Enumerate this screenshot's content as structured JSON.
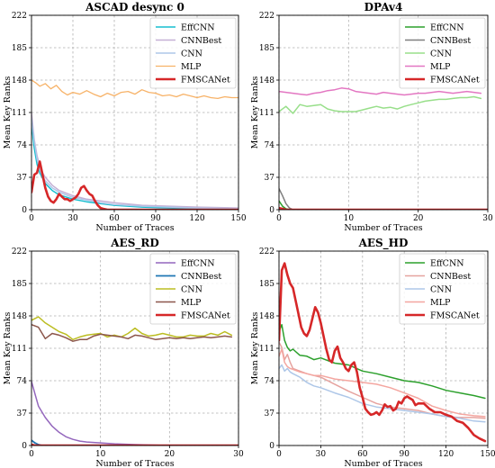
{
  "chart_data": [
    {
      "type": "line",
      "title": "ASCAD desync 0",
      "xlabel": "Number of Traces",
      "ylabel": "Mean Key Ranks",
      "xlim": [
        0,
        150
      ],
      "ylim": [
        0,
        222
      ],
      "xticks": [
        0,
        30,
        60,
        90,
        120,
        150
      ],
      "yticks": [
        0,
        37,
        74,
        111,
        148,
        185,
        222
      ],
      "grid": true,
      "legend": "top-right",
      "series": [
        {
          "name": "EffCNN",
          "color": "#17becf",
          "width": 1.5,
          "x": [
            0,
            2,
            4,
            6,
            8,
            10,
            15,
            20,
            30,
            40,
            50,
            60,
            80,
            100,
            120,
            150
          ],
          "y": [
            98,
            70,
            52,
            42,
            36,
            30,
            22,
            17,
            12,
            9,
            7,
            5,
            3,
            2,
            1,
            0
          ]
        },
        {
          "name": "CNNBest",
          "color": "#c5b0d5",
          "width": 1.5,
          "x": [
            0,
            2,
            4,
            6,
            8,
            10,
            15,
            20,
            30,
            40,
            50,
            60,
            80,
            100,
            120,
            150
          ],
          "y": [
            110,
            80,
            62,
            50,
            42,
            37,
            28,
            22,
            16,
            12,
            10,
            8,
            5,
            4,
            3,
            2
          ]
        },
        {
          "name": "CNN",
          "color": "#aec7e8",
          "width": 1.5,
          "x": [
            0,
            2,
            4,
            6,
            8,
            10,
            15,
            20,
            30,
            40,
            50,
            60,
            80,
            100,
            120,
            150
          ],
          "y": [
            104,
            78,
            58,
            46,
            38,
            33,
            25,
            20,
            14,
            11,
            8,
            6,
            4,
            3,
            2,
            1
          ]
        },
        {
          "name": "MLP",
          "color": "#f7b267",
          "width": 1.3,
          "x": [
            0,
            3,
            6,
            10,
            14,
            18,
            22,
            26,
            30,
            35,
            40,
            45,
            50,
            55,
            60,
            65,
            70,
            75,
            80,
            85,
            90,
            95,
            100,
            105,
            110,
            115,
            120,
            125,
            130,
            135,
            140,
            145,
            150
          ],
          "y": [
            148,
            145,
            141,
            144,
            138,
            142,
            135,
            131,
            134,
            132,
            136,
            132,
            129,
            133,
            130,
            134,
            135,
            132,
            137,
            134,
            133,
            130,
            131,
            129,
            132,
            130,
            128,
            130,
            128,
            127,
            129,
            128,
            128
          ]
        },
        {
          "name": "FMSCANet",
          "color": "#d62728",
          "width": 2.6,
          "x": [
            0,
            2,
            4,
            6,
            8,
            10,
            12,
            14,
            16,
            18,
            20,
            22,
            24,
            26,
            28,
            30,
            32,
            34,
            36,
            38,
            40,
            42,
            44,
            46,
            48,
            50,
            52,
            55,
            60,
            80,
            100,
            150
          ],
          "y": [
            20,
            40,
            42,
            55,
            40,
            25,
            15,
            10,
            8,
            12,
            18,
            15,
            12,
            12,
            10,
            12,
            14,
            18,
            25,
            27,
            22,
            18,
            16,
            10,
            5,
            2,
            1,
            0,
            0,
            0,
            0,
            0
          ]
        }
      ]
    },
    {
      "type": "line",
      "title": "DPAv4",
      "xlabel": "Number of Traces",
      "ylabel": "Mean Key Ranks",
      "xlim": [
        0,
        30
      ],
      "ylim": [
        0,
        222
      ],
      "xticks": [
        0,
        10,
        20,
        30
      ],
      "yticks": [
        0,
        37,
        74,
        111,
        148,
        185,
        222
      ],
      "grid": true,
      "legend": "top-right",
      "series": [
        {
          "name": "EffCNN",
          "color": "#2ca02c",
          "width": 1.5,
          "x": [
            0,
            0.5,
            1,
            1.5,
            2,
            3,
            30
          ],
          "y": [
            10,
            4,
            1,
            0,
            0,
            0,
            0
          ]
        },
        {
          "name": "CNNBest",
          "color": "#7f7f7f",
          "width": 1.5,
          "x": [
            0,
            0.5,
            1,
            1.5,
            2,
            3,
            30
          ],
          "y": [
            24,
            16,
            7,
            2,
            0,
            0,
            0
          ]
        },
        {
          "name": "CNN",
          "color": "#98df8a",
          "width": 1.5,
          "x": [
            0,
            1,
            2,
            3,
            4,
            5,
            6,
            7,
            8,
            9,
            10,
            11,
            12,
            13,
            14,
            15,
            16,
            17,
            18,
            19,
            20,
            21,
            22,
            23,
            24,
            25,
            26,
            27,
            28,
            29
          ],
          "y": [
            112,
            118,
            110,
            120,
            118,
            119,
            120,
            115,
            113,
            112,
            112,
            112,
            114,
            116,
            118,
            116,
            117,
            115,
            118,
            120,
            122,
            124,
            125,
            126,
            126,
            127,
            128,
            128,
            129,
            127
          ]
        },
        {
          "name": "MLP",
          "color": "#e377c2",
          "width": 1.5,
          "x": [
            0,
            1,
            2,
            3,
            4,
            5,
            6,
            7,
            8,
            9,
            10,
            11,
            12,
            13,
            14,
            15,
            16,
            17,
            18,
            19,
            20,
            21,
            22,
            23,
            24,
            25,
            26,
            27,
            28,
            29
          ],
          "y": [
            135,
            134,
            133,
            132,
            131,
            133,
            134,
            136,
            137,
            139,
            138,
            135,
            134,
            133,
            132,
            134,
            133,
            132,
            131,
            132,
            133,
            133,
            134,
            135,
            134,
            133,
            134,
            135,
            134,
            133
          ]
        },
        {
          "name": "FMSCANet",
          "color": "#d62728",
          "width": 2.6,
          "x": [
            0,
            0.5,
            1,
            2,
            30
          ],
          "y": [
            2,
            1,
            0,
            0,
            0
          ]
        }
      ]
    },
    {
      "type": "line",
      "title": "AES_RD",
      "xlabel": "Number of Traces",
      "ylabel": "Mean Key Ranks",
      "xlim": [
        0,
        30
      ],
      "ylim": [
        0,
        222
      ],
      "xticks": [
        0,
        10,
        20,
        30
      ],
      "yticks": [
        0,
        37,
        74,
        111,
        148,
        185,
        222
      ],
      "grid": true,
      "legend": "top-right",
      "series": [
        {
          "name": "EffCNN",
          "color": "#9467bd",
          "width": 1.5,
          "x": [
            0,
            1,
            2,
            3,
            4,
            5,
            6,
            7,
            8,
            10,
            12,
            15,
            20,
            25,
            30
          ],
          "y": [
            73,
            45,
            32,
            22,
            15,
            10,
            7,
            5,
            4,
            3,
            2,
            1,
            0,
            0,
            0
          ]
        },
        {
          "name": "CNNBest",
          "color": "#1f77b4",
          "width": 1.8,
          "x": [
            0,
            0.5,
            1,
            1.5,
            2,
            30
          ],
          "y": [
            6,
            3,
            1,
            0,
            0,
            0
          ]
        },
        {
          "name": "CNN",
          "color": "#bcbd22",
          "width": 1.5,
          "x": [
            0,
            1,
            2,
            3,
            4,
            5,
            6,
            7,
            8,
            9,
            10,
            11,
            12,
            13,
            14,
            15,
            16,
            17,
            18,
            19,
            20,
            21,
            22,
            23,
            24,
            25,
            26,
            27,
            28,
            29
          ],
          "y": [
            143,
            147,
            140,
            135,
            130,
            127,
            121,
            124,
            126,
            127,
            128,
            124,
            126,
            124,
            128,
            134,
            128,
            125,
            126,
            128,
            126,
            124,
            124,
            126,
            125,
            125,
            128,
            126,
            130,
            126
          ]
        },
        {
          "name": "MLP",
          "color": "#8c564b",
          "width": 1.5,
          "x": [
            0,
            1,
            2,
            3,
            4,
            5,
            6,
            7,
            8,
            9,
            10,
            11,
            12,
            13,
            14,
            15,
            16,
            17,
            18,
            19,
            20,
            21,
            22,
            23,
            24,
            25,
            26,
            27,
            28,
            29
          ],
          "y": [
            138,
            135,
            122,
            128,
            126,
            123,
            119,
            121,
            121,
            125,
            127,
            126,
            125,
            124,
            122,
            126,
            125,
            123,
            121,
            122,
            123,
            122,
            123,
            122,
            123,
            124,
            123,
            124,
            125,
            124
          ]
        },
        {
          "name": "FMSCANet",
          "color": "#d62728",
          "width": 2.6,
          "x": [
            0,
            0.5,
            1,
            30
          ],
          "y": [
            1,
            0,
            0,
            0
          ]
        }
      ]
    },
    {
      "type": "line",
      "title": "AES_HD",
      "xlabel": "Number of Traces",
      "ylabel": "Mean Key Ranks",
      "xlim": [
        0,
        150
      ],
      "ylim": [
        0,
        222
      ],
      "xticks": [
        0,
        30,
        60,
        90,
        120,
        150
      ],
      "yticks": [
        0,
        37,
        74,
        111,
        148,
        185,
        222
      ],
      "grid": true,
      "legend": "top-right",
      "series": [
        {
          "name": "EffCNN",
          "color": "#2ca02c",
          "width": 1.5,
          "x": [
            0,
            2,
            4,
            6,
            8,
            10,
            15,
            20,
            25,
            30,
            40,
            50,
            60,
            70,
            80,
            90,
            100,
            110,
            120,
            130,
            140,
            148
          ],
          "y": [
            130,
            138,
            120,
            112,
            108,
            110,
            103,
            102,
            98,
            100,
            94,
            92,
            85,
            82,
            78,
            74,
            72,
            68,
            63,
            60,
            57,
            54
          ]
        },
        {
          "name": "CNNBest",
          "color": "#e6a39f",
          "width": 1.5,
          "x": [
            0,
            2,
            4,
            6,
            8,
            10,
            15,
            20,
            25,
            30,
            40,
            50,
            60,
            70,
            80,
            90,
            100,
            110,
            120,
            130,
            140,
            148
          ],
          "y": [
            118,
            112,
            98,
            104,
            95,
            88,
            85,
            82,
            80,
            78,
            70,
            62,
            55,
            48,
            44,
            42,
            40,
            36,
            33,
            32,
            32,
            31
          ]
        },
        {
          "name": "CNN",
          "color": "#aec7e8",
          "width": 1.5,
          "x": [
            0,
            2,
            4,
            6,
            8,
            10,
            15,
            20,
            25,
            30,
            40,
            50,
            60,
            70,
            80,
            90,
            100,
            110,
            120,
            130,
            140,
            148
          ],
          "y": [
            88,
            92,
            85,
            88,
            84,
            82,
            78,
            72,
            68,
            66,
            60,
            55,
            48,
            44,
            42,
            40,
            38,
            36,
            33,
            31,
            28,
            27
          ]
        },
        {
          "name": "MLP",
          "color": "#f4a6a0",
          "width": 1.5,
          "x": [
            0,
            2,
            4,
            6,
            8,
            10,
            15,
            20,
            25,
            30,
            40,
            50,
            60,
            70,
            80,
            90,
            100,
            110,
            120,
            130,
            140,
            148
          ],
          "y": [
            102,
            110,
            95,
            90,
            88,
            87,
            84,
            82,
            80,
            80,
            76,
            74,
            72,
            70,
            66,
            60,
            54,
            45,
            40,
            36,
            34,
            33
          ]
        },
        {
          "name": "FMSCANet",
          "color": "#d62728",
          "width": 2.6,
          "x": [
            0,
            2,
            4,
            6,
            8,
            10,
            12,
            14,
            16,
            18,
            20,
            22,
            24,
            26,
            28,
            30,
            32,
            34,
            36,
            38,
            40,
            42,
            44,
            46,
            48,
            50,
            52,
            54,
            56,
            58,
            60,
            62,
            64,
            66,
            68,
            70,
            72,
            74,
            76,
            78,
            80,
            82,
            84,
            86,
            88,
            90,
            92,
            94,
            96,
            98,
            100,
            104,
            108,
            112,
            116,
            120,
            124,
            128,
            132,
            136,
            140,
            144,
            148
          ],
          "y": [
            120,
            200,
            208,
            195,
            185,
            180,
            165,
            150,
            135,
            128,
            125,
            132,
            145,
            158,
            152,
            140,
            125,
            110,
            98,
            95,
            108,
            113,
            100,
            95,
            88,
            85,
            92,
            95,
            84,
            66,
            55,
            42,
            38,
            35,
            36,
            38,
            35,
            40,
            47,
            44,
            45,
            40,
            42,
            50,
            48,
            54,
            56,
            54,
            52,
            46,
            48,
            48,
            42,
            38,
            38,
            35,
            33,
            28,
            26,
            20,
            12,
            8,
            5
          ]
        }
      ]
    }
  ]
}
